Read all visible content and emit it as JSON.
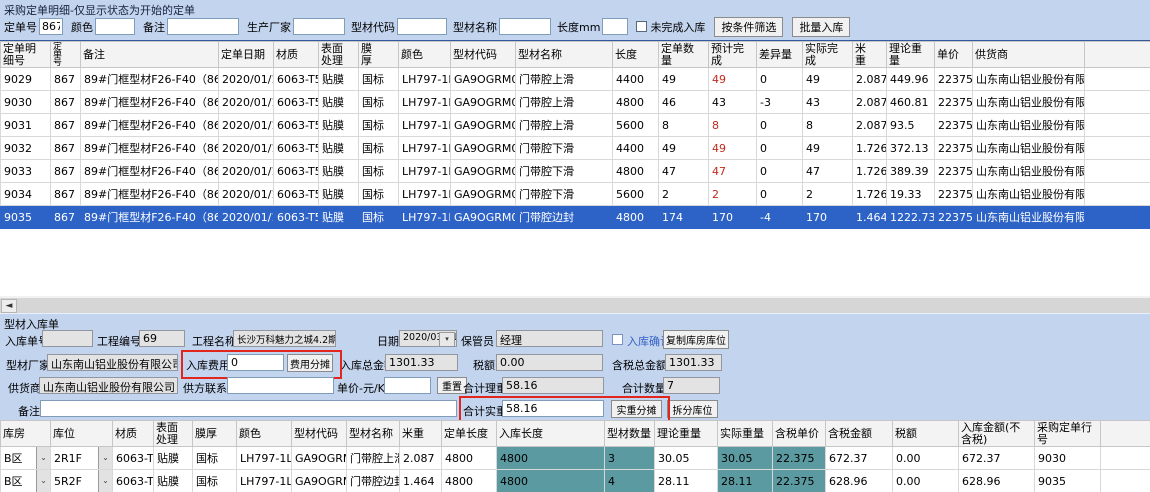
{
  "icons": {
    "scroll_left": "◄",
    "dropdown_arrow": "▾",
    "combo_arrow": "⌄"
  },
  "colors": {
    "app_background": "#c3d4ee",
    "selection_blue": "#2d62c6",
    "highlight_teal": "#5b9aa0",
    "alert_red_text": "#c22a1e",
    "highlight_box_red": "#e2251d"
  },
  "top": {
    "title": "采购定单明细-仅显示状态为开始的定单",
    "filters": {
      "order_no_label": "定单号",
      "order_no_value": "867",
      "color_label": "颜色",
      "color_value": "",
      "note_label": "备注",
      "note_value": "",
      "factory_label": "生产厂家",
      "factory_value": "",
      "profile_code_label": "型材代码",
      "profile_code_value": "",
      "profile_name_label": "型材名称",
      "profile_name_value": "",
      "length_label": "长度mm",
      "length_value": "",
      "unfinished_label": "未完成入库",
      "filter_button_label": "按条件筛选",
      "batch_inbound_button_label": "批量入库"
    },
    "grid": {
      "headers": [
        "定单明\n细号",
        "定\n单\n号",
        "备注",
        "定单日期",
        "材质",
        "表面\n处理",
        "膜\n厚",
        "颜色",
        "型材代码",
        "型材名称",
        "长度",
        "定单数\n量",
        "预计完\n成",
        "差异量",
        "实际完\n成",
        "米\n重",
        "理论重\n量",
        "单价",
        "供货商",
        ""
      ],
      "red_column_index": 12,
      "selected_row_index": 6,
      "rows": [
        {
          "red_forecast": true,
          "cells": [
            "9029",
            "867",
            "89#门框型材F26-F40（866+867）",
            "2020/01/13",
            "6063-T5",
            "贴膜",
            "国标",
            "LH797-1LL0",
            "GA9OGRM03",
            "门带腔上滑",
            "4400",
            "49",
            "49",
            "0",
            "49",
            "2.087",
            "449.96",
            "22375",
            "山东南山铝业股份有限公司",
            ""
          ]
        },
        {
          "red_forecast": false,
          "cells": [
            "9030",
            "867",
            "89#门框型材F26-F40（866+867）",
            "2020/01/13",
            "6063-T5",
            "贴膜",
            "国标",
            "LH797-1LL0",
            "GA9OGRM03",
            "门带腔上滑",
            "4800",
            "46",
            "43",
            "-3",
            "43",
            "2.087",
            "460.81",
            "22375",
            "山东南山铝业股份有限公司",
            ""
          ]
        },
        {
          "red_forecast": true,
          "cells": [
            "9031",
            "867",
            "89#门框型材F26-F40（866+867）",
            "2020/01/13",
            "6063-T5",
            "贴膜",
            "国标",
            "LH797-1LL0",
            "GA9OGRM03",
            "门带腔上滑",
            "5600",
            "8",
            "8",
            "0",
            "8",
            "2.087",
            "93.5",
            "22375",
            "山东南山铝业股份有限公司",
            ""
          ]
        },
        {
          "red_forecast": true,
          "cells": [
            "9032",
            "867",
            "89#门框型材F26-F40（866+867）",
            "2020/01/13",
            "6063-T5",
            "贴膜",
            "国标",
            "LH797-1LL0",
            "GA9OGRM04",
            "门带腔下滑",
            "4400",
            "49",
            "49",
            "0",
            "49",
            "1.726",
            "372.13",
            "22375",
            "山东南山铝业股份有限公司",
            ""
          ]
        },
        {
          "red_forecast": true,
          "cells": [
            "9033",
            "867",
            "89#门框型材F26-F40（866+867）",
            "2020/01/13",
            "6063-T5",
            "贴膜",
            "国标",
            "LH797-1LL0",
            "GA9OGRM04",
            "门带腔下滑",
            "4800",
            "47",
            "47",
            "0",
            "47",
            "1.726",
            "389.39",
            "22375",
            "山东南山铝业股份有限公司",
            ""
          ]
        },
        {
          "red_forecast": true,
          "cells": [
            "9034",
            "867",
            "89#门框型材F26-F40（866+867）",
            "2020/01/13",
            "6063-T5",
            "贴膜",
            "国标",
            "LH797-1LL0",
            "GA9OGRM04",
            "门带腔下滑",
            "5600",
            "2",
            "2",
            "0",
            "2",
            "1.726",
            "19.33",
            "22375",
            "山东南山铝业股份有限公司",
            ""
          ]
        },
        {
          "red_forecast": false,
          "cells": [
            "9035",
            "867",
            "89#门框型材F26-F40（866+867）",
            "2020/01/13",
            "6063-T5",
            "贴膜",
            "国标",
            "LH797-1LL0",
            "GA9OGRM05",
            "门带腔边封",
            "4800",
            "174",
            "170",
            "-4",
            "170",
            "1.464",
            "1222.73",
            "22375",
            "山东南山铝业股份有限公司",
            ""
          ]
        }
      ]
    }
  },
  "bottom": {
    "title": "型材入库单",
    "form": {
      "inbound_no_label": "入库单号",
      "inbound_no_value": "",
      "project_no_label": "工程编号",
      "project_no_value": "69",
      "project_name_label": "工程名称",
      "project_name_value": "长沙万科魅力之城4.2期",
      "date_label": "日期",
      "date_value": "2020/03/31",
      "keeper_label": "保管员",
      "keeper_value": "经理",
      "confirm_label": "入库确认",
      "copy_location_button_label": "复制库房库位",
      "maker_label": "型材厂家",
      "maker_value": "山东南山铝业股份有限公司",
      "inbound_fee_label": "入库费用",
      "inbound_fee_value": "0",
      "fee_share_button_label": "费用分摊",
      "total_amount_label": "入库总金额",
      "total_amount_value": "1301.33",
      "tax_label": "税额",
      "tax_value": "0.00",
      "tax_total_label": "含税总金额",
      "tax_total_value": "1301.33",
      "supplier_label": "供货商",
      "supplier_value": "山东南山铝业股份有限公司",
      "supplier_contact_label": "供方联系人",
      "supplier_contact_value": "",
      "unit_price_label": "单价-元/KG",
      "unit_price_value": "",
      "reset_button_label": "重置",
      "total_theory_weight_label": "合计理重",
      "total_theory_weight_value": "58.16",
      "total_qty_label": "合计数量",
      "total_qty_value": "7",
      "note_label": "备注",
      "note_value": "",
      "total_actual_weight_label": "合计实重",
      "total_actual_weight_value": "58.16",
      "actual_share_button_label": "实重分摊",
      "split_location_button_label": "拆分库位"
    },
    "grid": {
      "headers": [
        "库房",
        "库位",
        "材质",
        "表面\n处理",
        "膜厚",
        "颜色",
        "型材代码",
        "型材名称",
        "米重",
        "定单长度",
        "入库长度",
        "型材数量",
        "理论重量",
        "实际重量",
        "含税单价",
        "含税金额",
        "税额",
        "入库金额(不\n含税)",
        "采购定单行\n号",
        ""
      ],
      "teal_columns": [
        10,
        11,
        13,
        14
      ],
      "rows": [
        {
          "cells": [
            "B区",
            "2R1F",
            "6063-T5",
            "贴膜",
            "国标",
            "LH797-1LL0",
            "GA9OGRM03",
            "门带腔上滑",
            "2.087",
            "4800",
            "4800",
            "3",
            "30.05",
            "30.05",
            "22.375",
            "672.37",
            "0.00",
            "672.37",
            "9030",
            ""
          ]
        },
        {
          "cells": [
            "B区",
            "5R2F",
            "6063-T5",
            "贴膜",
            "国标",
            "LH797-1LL0",
            "GA9OGRM05",
            "门带腔边封",
            "1.464",
            "4800",
            "4800",
            "4",
            "28.11",
            "28.11",
            "22.375",
            "628.96",
            "0.00",
            "628.96",
            "9035",
            ""
          ]
        }
      ]
    }
  }
}
